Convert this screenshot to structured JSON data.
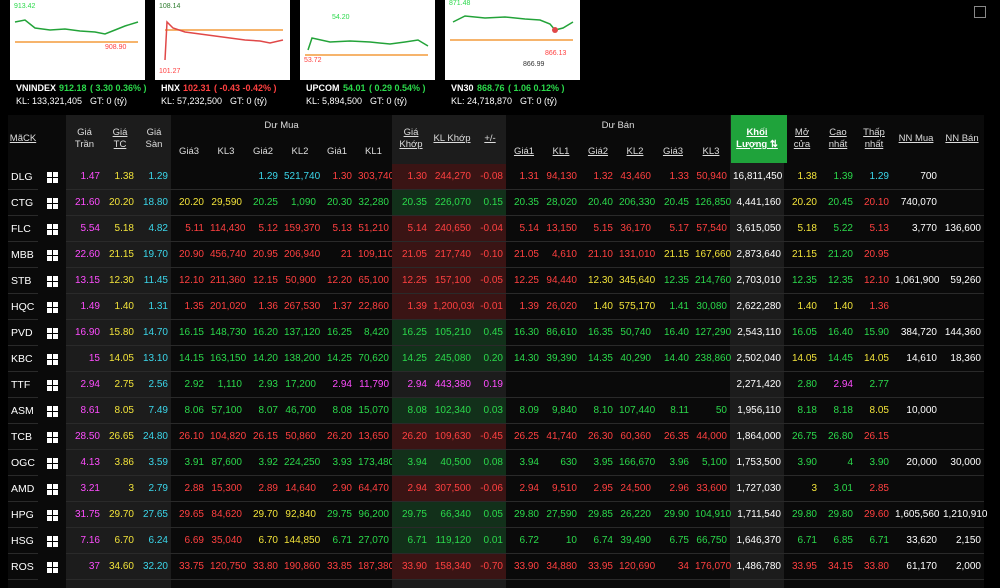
{
  "indices": [
    {
      "name": "VNINDEX",
      "price": "912.18",
      "change": "( 3.30  0.36% )",
      "volume": "KL: 133,321,405",
      "traded": "GT: 0 (tỷ)",
      "trend": "up",
      "chart_labels": [
        "913.42",
        "908.90"
      ]
    },
    {
      "name": "HNX",
      "price": "102.31",
      "change": "( -0.43  -0.42% )",
      "volume": "KL: 57,232,500",
      "traded": "GT: 0 (tỷ)",
      "trend": "down",
      "chart_labels": [
        "108.14",
        "101.27"
      ]
    },
    {
      "name": "UPCOM",
      "price": "54.01",
      "change": "( 0.29  0.54% )",
      "volume": "KL: 5,894,500",
      "traded": "GT: 0 (tỷ)",
      "trend": "up",
      "chart_labels": [
        "54.20",
        "53.72"
      ]
    },
    {
      "name": "VN30",
      "price": "868.76",
      "change": "( 1.06  0.12% )",
      "volume": "KL: 24,718,870",
      "traded": "GT: 0 (tỷ)",
      "trend": "up",
      "chart_labels": [
        "871.48",
        "866.13",
        "866.99"
      ]
    }
  ],
  "table": {
    "groups": [
      "Dư Mua",
      "Dư Bán"
    ],
    "headers": [
      "MãCK",
      "Giá Trần",
      "Giá TC",
      "Giá Sàn",
      "Giá3",
      "KL3",
      "Giá2",
      "KL2",
      "Giá1",
      "KL1",
      "Giá Khớp",
      "KL Khớp",
      "+/-",
      "Giá1",
      "KL1",
      "Giá2",
      "KL2",
      "Giá3",
      "KL3",
      "Khối Lượng ⇅",
      "Mở cửa",
      "Cao nhất",
      "Thấp nhất",
      "NN Mua",
      "NN Bán"
    ],
    "rows": [
      [
        "DLG",
        "1.47",
        "1.38",
        "1.29",
        null,
        null,
        "1.29",
        "521,740",
        "1.30",
        "303,740",
        "1.30",
        "244,270",
        "-0.08",
        "1.31",
        "94,130",
        "1.32",
        "43,460",
        "1.33",
        "50,940",
        "16,811,450",
        "1.38",
        "1.39",
        "1.29",
        "700",
        null
      ],
      [
        "CTG",
        "21.60",
        "20.20",
        "18.80",
        "20.20",
        "29,590",
        "20.25",
        "1,090",
        "20.30",
        "32,280",
        "20.35",
        "226,070",
        "0.15",
        "20.35",
        "28,020",
        "20.40",
        "206,330",
        "20.45",
        "126,850",
        "4,441,160",
        "20.20",
        "20.45",
        "20.10",
        "740,070",
        null
      ],
      [
        "FLC",
        "5.54",
        "5.18",
        "4.82",
        "5.11",
        "114,430",
        "5.12",
        "159,370",
        "5.13",
        "51,210",
        "5.14",
        "240,650",
        "-0.04",
        "5.14",
        "13,150",
        "5.15",
        "36,170",
        "5.17",
        "57,540",
        "3,615,050",
        "5.18",
        "5.22",
        "5.13",
        "3,770",
        "136,600"
      ],
      [
        "MBB",
        "22.60",
        "21.15",
        "19.70",
        "20.90",
        "456,740",
        "20.95",
        "206,940",
        "21",
        "109,110",
        "21.05",
        "217,740",
        "-0.10",
        "21.05",
        "4,610",
        "21.10",
        "131,010",
        "21.15",
        "167,660",
        "2,873,640",
        "21.15",
        "21.20",
        "20.95",
        null,
        null
      ],
      [
        "STB",
        "13.15",
        "12.30",
        "11.45",
        "12.10",
        "211,360",
        "12.15",
        "50,900",
        "12.20",
        "65,100",
        "12.25",
        "157,100",
        "-0.05",
        "12.25",
        "94,440",
        "12.30",
        "345,640",
        "12.35",
        "214,760",
        "2,703,010",
        "12.35",
        "12.35",
        "12.10",
        "1,061,900",
        "59,260"
      ],
      [
        "HQC",
        "1.49",
        "1.40",
        "1.31",
        "1.35",
        "201,020",
        "1.36",
        "267,530",
        "1.37",
        "22,860",
        "1.39",
        "1,200,030",
        "-0.01",
        "1.39",
        "26,020",
        "1.40",
        "575,170",
        "1.41",
        "30,080",
        "2,622,280",
        "1.40",
        "1.40",
        "1.36",
        null,
        null
      ],
      [
        "PVD",
        "16.90",
        "15.80",
        "14.70",
        "16.15",
        "148,730",
        "16.20",
        "137,120",
        "16.25",
        "8,420",
        "16.25",
        "105,210",
        "0.45",
        "16.30",
        "86,610",
        "16.35",
        "50,740",
        "16.40",
        "127,290",
        "2,543,110",
        "16.05",
        "16.40",
        "15.90",
        "384,720",
        "144,360"
      ],
      [
        "KBC",
        "15",
        "14.05",
        "13.10",
        "14.15",
        "163,150",
        "14.20",
        "138,200",
        "14.25",
        "70,620",
        "14.25",
        "245,080",
        "0.20",
        "14.30",
        "39,390",
        "14.35",
        "40,290",
        "14.40",
        "238,860",
        "2,502,040",
        "14.05",
        "14.45",
        "14.05",
        "14,610",
        "18,360"
      ],
      [
        "TTF",
        "2.94",
        "2.75",
        "2.56",
        "2.92",
        "1,110",
        "2.93",
        "17,200",
        "2.94",
        "11,790",
        "2.94",
        "443,380",
        "0.19",
        null,
        null,
        null,
        null,
        null,
        null,
        "2,271,420",
        "2.80",
        "2.94",
        "2.77",
        null,
        null
      ],
      [
        "ASM",
        "8.61",
        "8.05",
        "7.49",
        "8.06",
        "57,100",
        "8.07",
        "46,700",
        "8.08",
        "15,070",
        "8.08",
        "102,340",
        "0.03",
        "8.09",
        "9,840",
        "8.10",
        "107,440",
        "8.11",
        "50",
        "1,956,110",
        "8.18",
        "8.18",
        "8.05",
        "10,000",
        null
      ],
      [
        "TCB",
        "28.50",
        "26.65",
        "24.80",
        "26.10",
        "104,820",
        "26.15",
        "50,860",
        "26.20",
        "13,650",
        "26.20",
        "109,630",
        "-0.45",
        "26.25",
        "41,740",
        "26.30",
        "60,360",
        "26.35",
        "44,000",
        "1,864,000",
        "26.75",
        "26.80",
        "26.15",
        null,
        null
      ],
      [
        "OGC",
        "4.13",
        "3.86",
        "3.59",
        "3.91",
        "87,600",
        "3.92",
        "224,250",
        "3.93",
        "173,480",
        "3.94",
        "40,500",
        "0.08",
        "3.94",
        "630",
        "3.95",
        "166,670",
        "3.96",
        "5,100",
        "1,753,500",
        "3.90",
        "4",
        "3.90",
        "20,000",
        "30,000"
      ],
      [
        "AMD",
        "3.21",
        "3",
        "2.79",
        "2.88",
        "15,300",
        "2.89",
        "14,640",
        "2.90",
        "64,470",
        "2.94",
        "307,500",
        "-0.06",
        "2.94",
        "9,510",
        "2.95",
        "24,500",
        "2.96",
        "33,600",
        "1,727,030",
        "3",
        "3.01",
        "2.85",
        null,
        null
      ],
      [
        "HPG",
        "31.75",
        "29.70",
        "27.65",
        "29.65",
        "84,620",
        "29.70",
        "92,840",
        "29.75",
        "96,200",
        "29.75",
        "66,340",
        "0.05",
        "29.80",
        "27,590",
        "29.85",
        "26,220",
        "29.90",
        "104,910",
        "1,711,540",
        "29.80",
        "29.80",
        "29.60",
        "1,605,560",
        "1,210,910"
      ],
      [
        "HSG",
        "7.16",
        "6.70",
        "6.24",
        "6.69",
        "35,040",
        "6.70",
        "144,850",
        "6.71",
        "27,070",
        "6.71",
        "119,120",
        "0.01",
        "6.72",
        "10",
        "6.74",
        "39,490",
        "6.75",
        "66,750",
        "1,646,370",
        "6.71",
        "6.85",
        "6.71",
        "33,620",
        "2,150"
      ],
      [
        "ROS",
        "37",
        "34.60",
        "32.20",
        "33.75",
        "120,750",
        "33.80",
        "190,860",
        "33.85",
        "187,380",
        "33.90",
        "158,340",
        "-0.70",
        "33.90",
        "34,880",
        "33.95",
        "120,690",
        "34",
        "176,070",
        "1,486,780",
        "33.95",
        "34.15",
        "33.80",
        "61,170",
        "2,000"
      ]
    ]
  }
}
